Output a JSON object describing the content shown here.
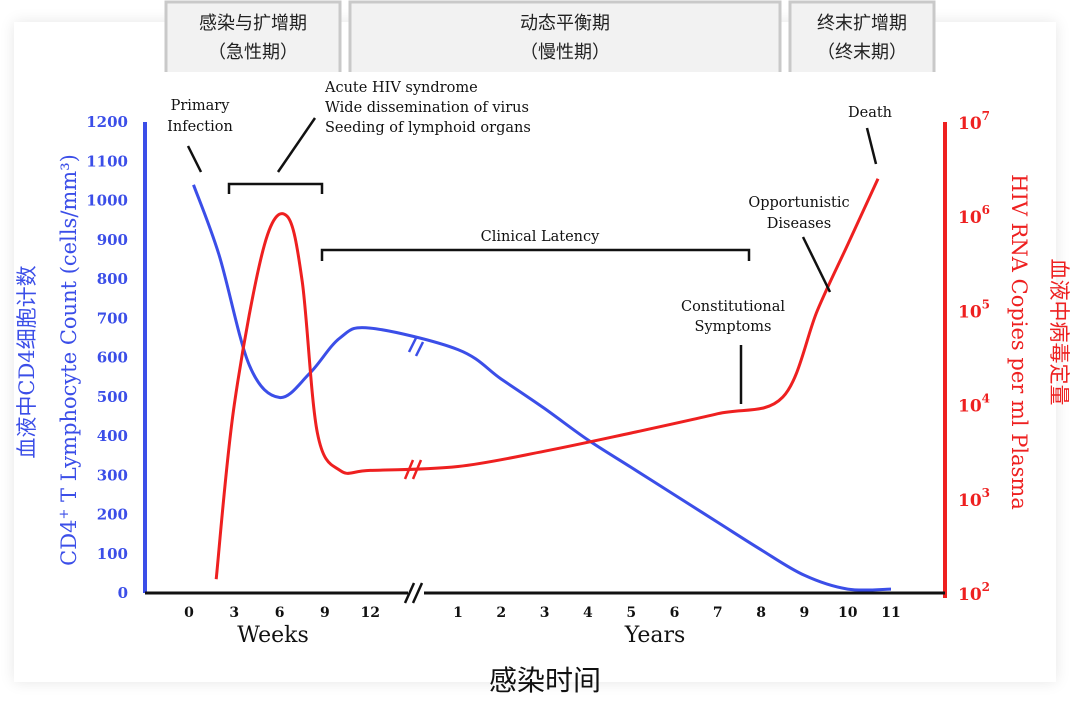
{
  "phases": [
    {
      "line1": "感染与扩增期",
      "line2": "（急性期）"
    },
    {
      "line1": "动态平衡期",
      "line2": "（慢性期）"
    },
    {
      "line1": "终末扩增期",
      "line2": "（终末期）"
    }
  ],
  "annotations": {
    "primary_infection": [
      "Primary",
      "Infection"
    ],
    "acute": [
      "Acute HIV syndrome",
      "Wide dissemination of virus",
      "Seeding of lymphoid organs"
    ],
    "clinical_latency": "Clinical Latency",
    "constitutional": [
      "Constitutional",
      "Symptoms"
    ],
    "opportunistic": [
      "Opportunistic",
      "Diseases"
    ],
    "death": "Death"
  },
  "colors": {
    "cd4": "#3b4ee8",
    "rna": "#ee2020",
    "axis": "#111111"
  },
  "chart_data": {
    "type": "line",
    "title": "",
    "xlabel": "感染时间",
    "x_units": [
      "Weeks",
      "Years"
    ],
    "x_tick_labels": [
      "0",
      "3",
      "6",
      "9",
      "12",
      "1",
      "2",
      "3",
      "4",
      "5",
      "6",
      "7",
      "8",
      "9",
      "10",
      "11"
    ],
    "y_left": {
      "label_cn": "血液中CD4细胞计数",
      "label_main": "CD4",
      "label_sup": "+",
      "label_rest": " T Lymphocyte Count (cells/mm³)",
      "ticks": [
        "0",
        "100",
        "200",
        "300",
        "400",
        "500",
        "600",
        "700",
        "800",
        "900",
        "1000",
        "1100",
        "1200"
      ],
      "range": [
        0,
        1200
      ]
    },
    "y_right": {
      "label_main": "HIV RNA Copies per ml Plasma",
      "label_cn": "血液中病毒定量",
      "scale": "log",
      "base": "10",
      "exponents": [
        "2",
        "3",
        "4",
        "5",
        "6",
        "7"
      ],
      "range": [
        100,
        10000000
      ]
    },
    "series": [
      {
        "name": "CD4+ T Lymphocyte Count",
        "axis": "left",
        "points": [
          {
            "t": 0.3,
            "unit": "weeks",
            "v": 1040
          },
          {
            "t": 2,
            "unit": "weeks",
            "v": 860
          },
          {
            "t": 4,
            "unit": "weeks",
            "v": 580
          },
          {
            "t": 6,
            "unit": "weeks",
            "v": 498
          },
          {
            "t": 8,
            "unit": "weeks",
            "v": 560
          },
          {
            "t": 10,
            "unit": "weeks",
            "v": 650
          },
          {
            "t": 12,
            "unit": "weeks",
            "v": 675
          },
          {
            "t": 1,
            "unit": "years",
            "v": 620
          },
          {
            "t": 2,
            "unit": "years",
            "v": 545
          },
          {
            "t": 3,
            "unit": "years",
            "v": 470
          },
          {
            "t": 4,
            "unit": "years",
            "v": 390
          },
          {
            "t": 5,
            "unit": "years",
            "v": 320
          },
          {
            "t": 6,
            "unit": "years",
            "v": 250
          },
          {
            "t": 7,
            "unit": "years",
            "v": 180
          },
          {
            "t": 8,
            "unit": "years",
            "v": 110
          },
          {
            "t": 9,
            "unit": "years",
            "v": 45
          },
          {
            "t": 10,
            "unit": "years",
            "v": 10
          },
          {
            "t": 11,
            "unit": "years",
            "v": 10
          }
        ]
      },
      {
        "name": "HIV RNA Copies per ml Plasma",
        "axis": "right",
        "points": [
          {
            "t": 1.8,
            "unit": "weeks",
            "v": 140
          },
          {
            "t": 3,
            "unit": "weeks",
            "v": 10000
          },
          {
            "t": 5,
            "unit": "weeks",
            "v": 500000
          },
          {
            "t": 6.5,
            "unit": "weeks",
            "v": 1000000
          },
          {
            "t": 7.5,
            "unit": "weeks",
            "v": 200000
          },
          {
            "t": 8.5,
            "unit": "weeks",
            "v": 5000
          },
          {
            "t": 10,
            "unit": "weeks",
            "v": 2000
          },
          {
            "t": 12,
            "unit": "weeks",
            "v": 2000
          },
          {
            "t": 1,
            "unit": "years",
            "v": 2200
          },
          {
            "t": 3,
            "unit": "years",
            "v": 3200
          },
          {
            "t": 5,
            "unit": "years",
            "v": 5000
          },
          {
            "t": 7,
            "unit": "years",
            "v": 8000
          },
          {
            "t": 8.5,
            "unit": "years",
            "v": 12000
          },
          {
            "t": 9.3,
            "unit": "years",
            "v": 100000
          },
          {
            "t": 10,
            "unit": "years",
            "v": 500000
          },
          {
            "t": 10.7,
            "unit": "years",
            "v": 2500000
          }
        ]
      }
    ]
  }
}
